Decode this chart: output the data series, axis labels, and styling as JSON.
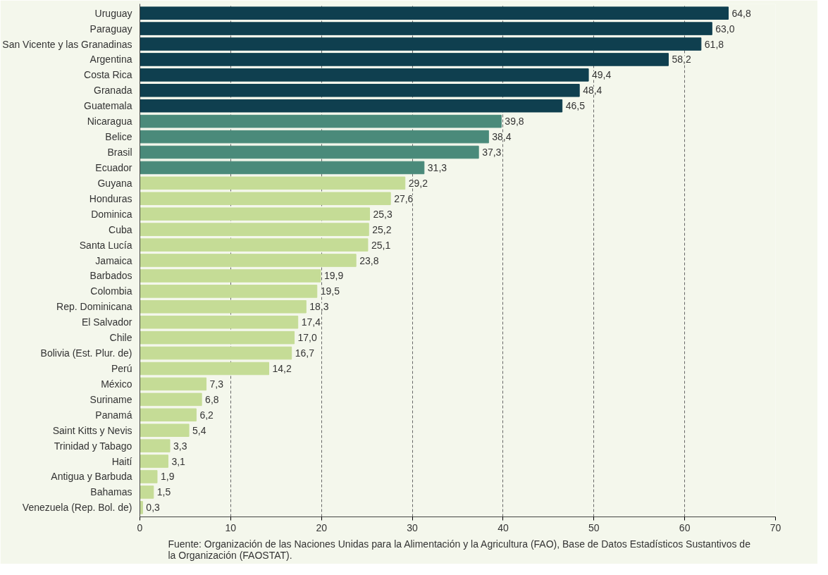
{
  "chart_data": {
    "type": "bar",
    "orientation": "horizontal",
    "categories": [
      "Uruguay",
      "Paraguay",
      "San Vicente y las Granadinas",
      "Argentina",
      "Costa Rica",
      "Granada",
      "Guatemala",
      "Nicaragua",
      "Belice",
      "Brasil",
      "Ecuador",
      "Guyana",
      "Honduras",
      "Dominica",
      "Cuba",
      "Santa Lucía",
      "Jamaica",
      "Barbados",
      "Colombia",
      "Rep. Dominicana",
      "El Salvador",
      "Chile",
      "Bolivia (Est. Plur. de)",
      "Perú",
      "México",
      "Suriname",
      "Panamá",
      "Saint Kitts y Nevis",
      "Trinidad y Tabago",
      "Haití",
      "Antigua y Barbuda",
      "Bahamas",
      "Venezuela (Rep. Bol. de)"
    ],
    "values": [
      64.8,
      63.0,
      61.8,
      58.2,
      49.4,
      48.4,
      46.5,
      39.8,
      38.4,
      37.3,
      31.3,
      29.2,
      27.6,
      25.3,
      25.2,
      25.1,
      23.8,
      19.9,
      19.5,
      18.3,
      17.4,
      17.0,
      16.7,
      14.2,
      7.3,
      6.8,
      6.2,
      5.4,
      3.3,
      3.1,
      1.9,
      1.5,
      0.3
    ],
    "value_labels": [
      "64,8",
      "63,0",
      "61,8",
      "58,2",
      "49,4",
      "48,4",
      "46,5",
      "39,8",
      "38,4",
      "37,3",
      "31,3",
      "29,2",
      "27,6",
      "25,3",
      "25,2",
      "25,1",
      "23,8",
      "19,9",
      "19,5",
      "18,3",
      "17,4",
      "17,0",
      "16,7",
      "14,2",
      "7,3",
      "6,8",
      "6,2",
      "5,4",
      "3,3",
      "3,1",
      "1,9",
      "1,5",
      "0,3"
    ],
    "colors": [
      "#0f3f4f",
      "#0f3f4f",
      "#0f3f4f",
      "#0f3f4f",
      "#0f3f4f",
      "#0f3f4f",
      "#0f3f4f",
      "#4a8a7a",
      "#4a8a7a",
      "#4a8a7a",
      "#4a8a7a",
      "#c5dc96",
      "#c5dc96",
      "#c5dc96",
      "#c5dc96",
      "#c5dc96",
      "#c5dc96",
      "#c5dc96",
      "#c5dc96",
      "#c5dc96",
      "#c5dc96",
      "#c5dc96",
      "#c5dc96",
      "#c5dc96",
      "#c5dc96",
      "#c5dc96",
      "#c5dc96",
      "#c5dc96",
      "#c5dc96",
      "#c5dc96",
      "#c5dc96",
      "#c5dc96",
      "#c5dc96"
    ],
    "xlim": [
      0,
      70
    ],
    "xticks": [
      0,
      10,
      20,
      30,
      40,
      50,
      60,
      70
    ],
    "grid": "x",
    "annotations": [
      "Fuente: Organización de las Naciones Unidas para la Alimentación y la Agricultura (FAO), Base de Datos Estadísticos Sustantivos de la Organización (FAOSTAT)."
    ]
  }
}
